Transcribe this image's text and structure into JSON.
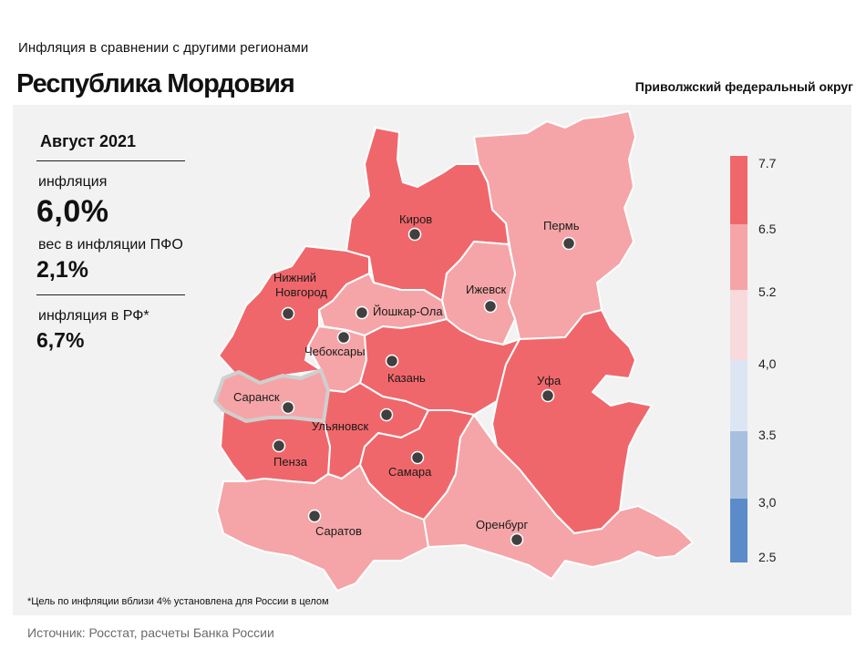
{
  "header": {
    "subtitle": "Инфляция  в сравнении  с другими  регионами",
    "title": "Республика Мордовия",
    "district": "Приволжский федеральный округ"
  },
  "info": {
    "period": "Август 2021",
    "inflation_label": "инфляция",
    "inflation_value": "6,0%",
    "weight_label": "вес в инфляции  ПФО",
    "weight_value": "2,1%",
    "rf_label": "инфляция  в РФ*",
    "rf_value": "6,7%"
  },
  "footnote": "*Цель по инфляции вблизи 4% установлена для России в целом",
  "source": "Источник: Росстат, расчеты Банка России",
  "colors": {
    "band_6_5_7_7": "#f0676b",
    "band_5_2_6_5": "#f5a5a7",
    "band_4_0_5_2": "#f9dadc",
    "band_3_5_4_0": "#dce6f3",
    "band_3_0_3_5": "#a7c0e0",
    "band_2_5_3_0": "#5b8cc9",
    "border": "#ffffff",
    "highlight_outline": "#cfcfcf"
  },
  "legend": {
    "breaks": [
      "7.7",
      "6.5",
      "5.2",
      "4,0",
      "3.5",
      "3,0",
      "2.5"
    ]
  },
  "map": {
    "regions": [
      {
        "city": "Киров",
        "band": "6.5–7.7"
      },
      {
        "city": "Пермь",
        "band": "5.2–6.5"
      },
      {
        "city": "Нижний Новгород",
        "band": "6.5–7.7"
      },
      {
        "city": "Ижевск",
        "band": "5.2–6.5"
      },
      {
        "city": "Йошкар-Ола",
        "band": "5.2–6.5"
      },
      {
        "city": "Чебоксары",
        "band": "5.2–6.5"
      },
      {
        "city": "Казань",
        "band": "6.5–7.7"
      },
      {
        "city": "Уфа",
        "band": "6.5–7.7"
      },
      {
        "city": "Саранск",
        "band": "5.2–6.5",
        "highlighted": true
      },
      {
        "city": "Ульяновск",
        "band": "6.5–7.7"
      },
      {
        "city": "Пенза",
        "band": "6.5–7.7"
      },
      {
        "city": "Самара",
        "band": "6.5–7.7"
      },
      {
        "city": "Саратов",
        "band": "5.2–6.5"
      },
      {
        "city": "Оренбург",
        "band": "5.2–6.5"
      }
    ],
    "city_labels": {
      "kirov": "Киров",
      "perm": "Пермь",
      "nn_line1": "Нижний",
      "nn_line2": "Новгород",
      "izhevsk": "Ижевск",
      "yoshkar": "Йошкар-Ола",
      "cheboksary": "Чебоксары",
      "kazan": "Казань",
      "ufa": "Уфа",
      "saransk": "Саранск",
      "ulyanovsk": "Ульяновск",
      "penza": "Пенза",
      "samara": "Самара",
      "saratov": "Саратов",
      "orenburg": "Оренбург"
    }
  }
}
